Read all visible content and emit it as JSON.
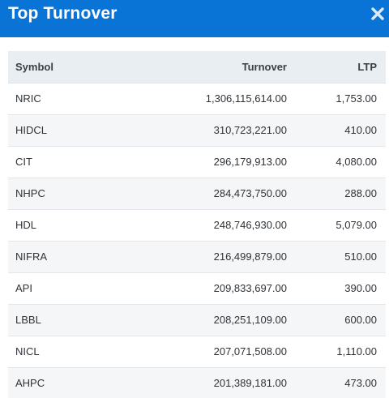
{
  "modal": {
    "title": "Top Turnover",
    "close_icon": "close-icon"
  },
  "table": {
    "headers": {
      "symbol": "Symbol",
      "turnover": "Turnover",
      "ltp": "LTP"
    },
    "rows": [
      {
        "symbol": "NRIC",
        "turnover": "1,306,115,614.00",
        "ltp": "1,753.00"
      },
      {
        "symbol": "HIDCL",
        "turnover": "310,723,221.00",
        "ltp": "410.00"
      },
      {
        "symbol": "CIT",
        "turnover": "296,179,913.00",
        "ltp": "4,080.00"
      },
      {
        "symbol": "NHPC",
        "turnover": "284,473,750.00",
        "ltp": "288.00"
      },
      {
        "symbol": "HDL",
        "turnover": "248,746,930.00",
        "ltp": "5,079.00"
      },
      {
        "symbol": "NIFRA",
        "turnover": "216,499,879.00",
        "ltp": "510.00"
      },
      {
        "symbol": "API",
        "turnover": "209,833,697.00",
        "ltp": "390.00"
      },
      {
        "symbol": "LBBL",
        "turnover": "208,251,109.00",
        "ltp": "600.00"
      },
      {
        "symbol": "NICL",
        "turnover": "207,071,508.00",
        "ltp": "1,110.00"
      },
      {
        "symbol": "AHPC",
        "turnover": "201,389,181.00",
        "ltp": "473.00"
      }
    ]
  },
  "colors": {
    "header_bg": "#0a73d6",
    "table_header_bg": "#e9eef3",
    "stripe_bg": "#f5f6f7"
  }
}
